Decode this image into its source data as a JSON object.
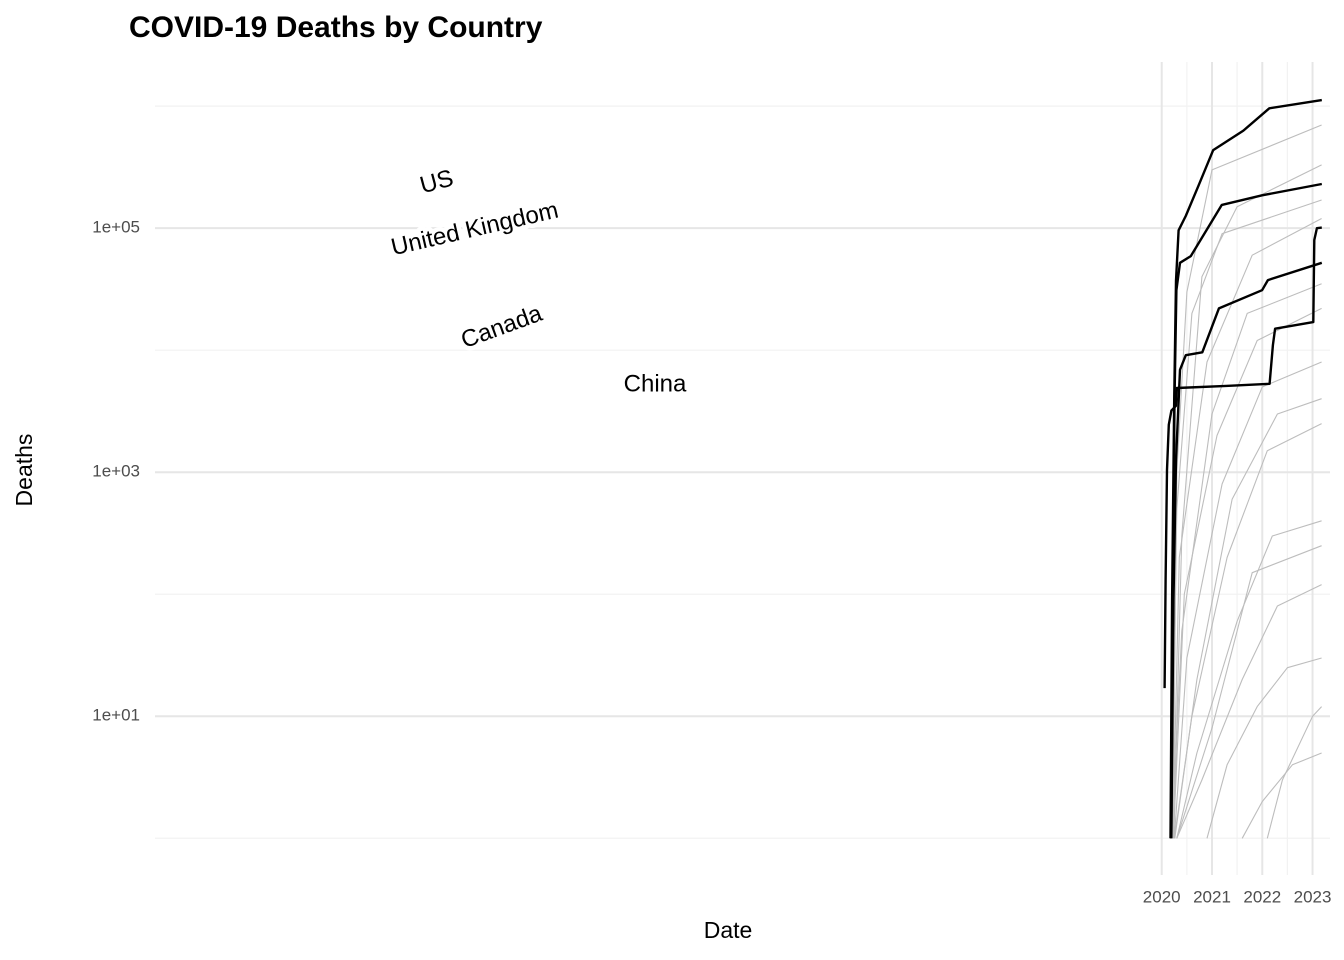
{
  "chart_data": {
    "type": "line",
    "title": "COVID-19 Deaths by Country",
    "x_label": "Date",
    "y_label": "Deaths",
    "log_y": true,
    "grid": true,
    "xlim": [
      1999.977,
      2023.347
    ],
    "ylim": [
      0.5,
      2300000
    ],
    "xticks": [
      2020,
      2021,
      2022,
      2023
    ],
    "minor_xticks": [
      2020.5,
      2021.5,
      2022.5
    ],
    "yticks": [
      {
        "value": 10,
        "label": "1e+01"
      },
      {
        "value": 1000,
        "label": "1e+03"
      },
      {
        "value": 100000,
        "label": "1e+05"
      }
    ],
    "minor_yticks": [
      1,
      100,
      10000,
      1000000
    ],
    "series": [
      {
        "color": "#bdbdbd",
        "x": [
          2020.2,
          2020.3,
          2020.6,
          2021.2,
          2023.18
        ],
        "values": [
          1,
          500,
          20000,
          90000,
          170000
        ]
      },
      {
        "color": "#bdbdbd",
        "x": [
          2020.22,
          2020.35,
          2020.9,
          2021.8,
          2023.18
        ],
        "values": [
          1,
          200,
          8000,
          60000,
          120000
        ]
      },
      {
        "color": "#bdbdbd",
        "x": [
          2020.2,
          2020.4,
          2021,
          2021.7,
          2023.18
        ],
        "values": [
          1,
          50,
          3000,
          20000,
          35000
        ]
      },
      {
        "color": "#bdbdbd",
        "x": [
          2020.25,
          2020.5,
          2021.2,
          2022,
          2023.18
        ],
        "values": [
          1,
          30,
          800,
          5000,
          8000
        ]
      },
      {
        "color": "#bdbdbd",
        "x": [
          2020.25,
          2020.6,
          2021.3,
          2022.1,
          2023.18
        ],
        "values": [
          1,
          10,
          200,
          1500,
          2500
        ]
      },
      {
        "color": "#bdbdbd",
        "x": [
          2020.3,
          2020.7,
          2021.5,
          2022.2,
          2023.18
        ],
        "values": [
          1,
          5,
          60,
          300,
          400
        ]
      },
      {
        "color": "#bdbdbd",
        "x": [
          2020.3,
          2020.8,
          2021.6,
          2022.3,
          2023.18
        ],
        "values": [
          1,
          3,
          20,
          80,
          120
        ]
      },
      {
        "color": "#bdbdbd",
        "x": [
          2020.9,
          2021.3,
          2021.9,
          2022.5,
          2023.18
        ],
        "values": [
          1,
          4,
          12,
          25,
          30
        ]
      },
      {
        "color": "#bdbdbd",
        "x": [
          2020.22,
          2020.3,
          2020.5,
          2021,
          2023.18
        ],
        "values": [
          1,
          1000,
          30000,
          300000,
          700000
        ]
      },
      {
        "color": "#bdbdbd",
        "x": [
          2020.24,
          2020.4,
          2020.8,
          2021.5,
          2023.18
        ],
        "values": [
          1,
          300,
          40000,
          150000,
          330000
        ]
      },
      {
        "color": "#bdbdbd",
        "x": [
          2020.23,
          2020.45,
          2021.1,
          2021.9,
          2023.18
        ],
        "values": [
          1,
          100,
          2000,
          12000,
          22000
        ]
      },
      {
        "color": "#bdbdbd",
        "x": [
          2021.6,
          2022.0,
          2022.6,
          2023.18
        ],
        "values": [
          1,
          2,
          4,
          5
        ]
      },
      {
        "color": "#bdbdbd",
        "x": [
          2020.26,
          2020.7,
          2021.4,
          2022.3,
          2023.18
        ],
        "values": [
          1,
          20,
          600,
          3000,
          4000
        ]
      },
      {
        "color": "#bdbdbd",
        "x": [
          2022.1,
          2022.4,
          2023.0,
          2023.18
        ],
        "values": [
          1,
          3,
          10,
          12
        ]
      },
      {
        "color": "#bdbdbd",
        "x": [
          2020.3,
          2021.0,
          2021.8,
          2023.18
        ],
        "values": [
          1,
          8,
          150,
          250
        ]
      },
      {
        "name": "US",
        "color": "#000000",
        "x": [
          2020.175,
          2020.206,
          2020.249,
          2020.284,
          2020.335,
          2020.479,
          2020.736,
          2021.023,
          2021.625,
          2022.14,
          2023.183
        ],
        "values": [
          1,
          90,
          3900,
          37000,
          96000,
          126000,
          225000,
          436000,
          630000,
          960000,
          1120000
        ]
      },
      {
        "name": "United Kingdom",
        "color": "#000000",
        "x": [
          2020.19,
          2020.22,
          2020.255,
          2020.292,
          2020.364,
          2020.579,
          2021.195,
          2021.997,
          2023.183
        ],
        "values": [
          1,
          90,
          3900,
          31000,
          52000,
          59000,
          155000,
          186000,
          230000
        ]
      },
      {
        "name": "Canada",
        "color": "#000000",
        "x": [
          2020.19,
          2020.235,
          2020.284,
          2020.364,
          2020.479,
          2020.808,
          2021.138,
          2021.997,
          2022.112,
          2023.183
        ],
        "values": [
          1,
          90,
          1260,
          6900,
          9100,
          9600,
          22000,
          31000,
          37500,
          52000
        ]
      },
      {
        "name": "China",
        "color": "#000000",
        "x": [
          2020.057,
          2020.077,
          2020.106,
          2020.14,
          2020.192,
          2020.284,
          2020.301,
          2021.281,
          2022.146,
          2022.212,
          2022.255,
          2023.014,
          2023.034,
          2023.086,
          2023.183
        ],
        "values": [
          17,
          130,
          1040,
          2450,
          3200,
          3500,
          4900,
          5100,
          5300,
          11000,
          15000,
          17000,
          80000,
          100000,
          101000
        ]
      }
    ]
  }
}
